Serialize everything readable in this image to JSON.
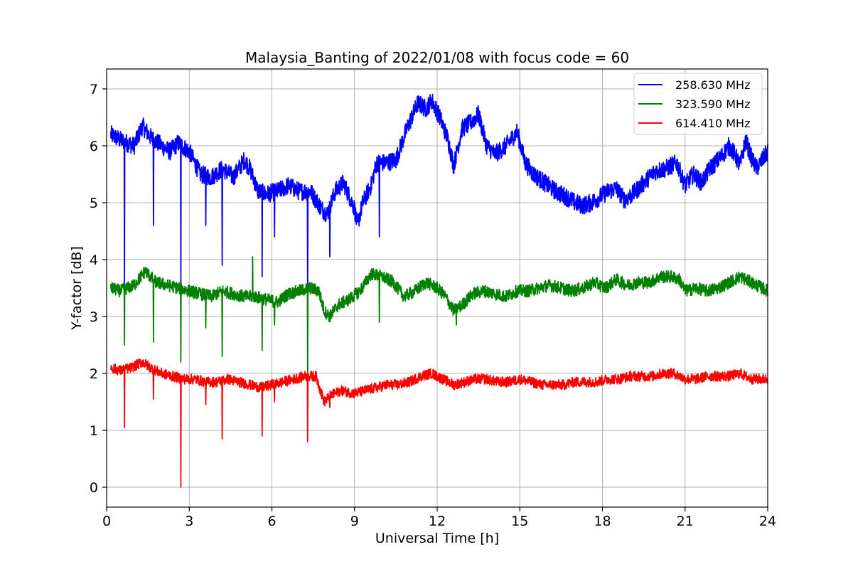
{
  "chart_data": {
    "type": "line",
    "title": "Malaysia_Banting of 2022/01/08 with focus code = 60",
    "xlabel": "Universal Time [h]",
    "ylabel": "Y-factor [dB]",
    "xlim": [
      0,
      24
    ],
    "ylim": [
      -0.35,
      7.35
    ],
    "xticks": [
      0,
      3,
      6,
      9,
      12,
      15,
      18,
      21,
      24
    ],
    "xtick_labels": [
      "0",
      "3",
      "6",
      "9",
      "12",
      "15",
      "18",
      "21",
      "24"
    ],
    "yticks": [
      0,
      1,
      2,
      3,
      4,
      5,
      6,
      7
    ],
    "ytick_labels": [
      "0",
      "1",
      "2",
      "3",
      "4",
      "5",
      "6",
      "7"
    ],
    "grid": true,
    "legend_position": "top-right",
    "series": [
      {
        "name": "258.630 MHz",
        "color": "#0000ff",
        "x": [
          0.15,
          0.5,
          1.0,
          1.3,
          1.6,
          2.0,
          2.3,
          2.6,
          3.0,
          3.4,
          3.8,
          4.2,
          4.6,
          5.0,
          5.2,
          5.5,
          5.8,
          6.2,
          6.6,
          7.0,
          7.4,
          7.8,
          8.0,
          8.3,
          8.6,
          9.0,
          9.1,
          9.3,
          9.6,
          9.8,
          10.1,
          10.5,
          10.9,
          11.3,
          11.6,
          11.8,
          12.1,
          12.4,
          12.6,
          12.9,
          13.2,
          13.5,
          13.8,
          14.1,
          14.5,
          14.9,
          15.2,
          15.5,
          15.9,
          16.3,
          16.7,
          17.0,
          17.3,
          17.6,
          17.9,
          18.2,
          18.5,
          18.8,
          19.1,
          19.5,
          19.9,
          20.3,
          20.7,
          21.0,
          21.3,
          21.6,
          21.9,
          22.3,
          22.6,
          22.8,
          23.0,
          23.2,
          23.4,
          23.6,
          23.8,
          24.0
        ],
        "y": [
          6.2,
          6.1,
          6.0,
          6.35,
          6.15,
          6.0,
          5.9,
          6.05,
          5.9,
          5.5,
          5.45,
          5.6,
          5.45,
          5.75,
          5.6,
          5.2,
          5.15,
          5.2,
          5.3,
          5.2,
          5.2,
          4.9,
          4.8,
          5.2,
          5.35,
          4.9,
          4.6,
          5.0,
          5.3,
          5.7,
          5.7,
          5.75,
          6.3,
          6.75,
          6.65,
          6.8,
          6.5,
          6.1,
          5.65,
          6.3,
          6.4,
          6.55,
          6.0,
          5.85,
          6.0,
          6.25,
          5.7,
          5.5,
          5.35,
          5.2,
          5.1,
          5.0,
          4.95,
          5.0,
          5.1,
          5.2,
          5.25,
          5.05,
          5.15,
          5.35,
          5.55,
          5.6,
          5.7,
          5.3,
          5.5,
          5.35,
          5.6,
          5.8,
          6.0,
          5.85,
          5.65,
          6.1,
          5.8,
          5.6,
          5.75,
          5.9
        ],
        "spikes": [
          [
            0.65,
            3.4
          ],
          [
            1.7,
            4.6
          ],
          [
            2.7,
            3.5
          ],
          [
            3.6,
            4.6
          ],
          [
            4.2,
            3.9
          ],
          [
            5.65,
            3.7
          ],
          [
            6.1,
            4.4
          ],
          [
            7.3,
            3.5
          ],
          [
            8.1,
            4.05
          ],
          [
            9.9,
            4.4
          ]
        ]
      },
      {
        "name": "323.590 MHz",
        "color": "#008000",
        "x": [
          0.15,
          0.5,
          1.0,
          1.4,
          1.8,
          2.2,
          2.6,
          3.0,
          3.4,
          3.8,
          4.2,
          4.6,
          5.0,
          5.4,
          5.8,
          6.2,
          6.6,
          7.0,
          7.4,
          7.7,
          7.9,
          8.1,
          8.4,
          8.8,
          9.2,
          9.6,
          10.0,
          10.4,
          10.8,
          11.2,
          11.6,
          12.0,
          12.3,
          12.6,
          12.9,
          13.3,
          13.7,
          14.1,
          14.5,
          14.9,
          15.3,
          15.7,
          16.1,
          16.5,
          16.9,
          17.3,
          17.7,
          18.1,
          18.5,
          18.9,
          19.3,
          19.7,
          20.1,
          20.5,
          20.8,
          21.0,
          21.4,
          21.8,
          22.2,
          22.6,
          23.0,
          23.4,
          23.8,
          24.0
        ],
        "y": [
          3.5,
          3.45,
          3.55,
          3.8,
          3.6,
          3.55,
          3.5,
          3.45,
          3.4,
          3.35,
          3.45,
          3.4,
          3.35,
          3.35,
          3.3,
          3.25,
          3.4,
          3.45,
          3.5,
          3.45,
          3.1,
          3.0,
          3.2,
          3.3,
          3.45,
          3.75,
          3.7,
          3.6,
          3.35,
          3.45,
          3.6,
          3.5,
          3.35,
          3.1,
          3.2,
          3.4,
          3.45,
          3.4,
          3.35,
          3.45,
          3.45,
          3.5,
          3.55,
          3.5,
          3.45,
          3.5,
          3.6,
          3.5,
          3.65,
          3.55,
          3.6,
          3.6,
          3.7,
          3.7,
          3.65,
          3.45,
          3.5,
          3.45,
          3.5,
          3.6,
          3.7,
          3.6,
          3.5,
          3.45
        ],
        "spikes": [
          [
            0.65,
            2.5
          ],
          [
            1.7,
            2.55
          ],
          [
            2.7,
            2.2
          ],
          [
            3.6,
            2.8
          ],
          [
            4.2,
            2.3
          ],
          [
            5.3,
            4.05
          ],
          [
            5.65,
            2.4
          ],
          [
            6.1,
            2.85
          ],
          [
            7.3,
            2.0
          ],
          [
            9.9,
            2.9
          ],
          [
            12.7,
            2.85
          ]
        ]
      },
      {
        "name": "614.410 MHz",
        "color": "#ff0000",
        "x": [
          0.15,
          0.5,
          0.9,
          1.3,
          1.6,
          2.0,
          2.4,
          2.8,
          3.2,
          3.6,
          4.0,
          4.4,
          4.8,
          5.2,
          5.6,
          6.0,
          6.4,
          6.8,
          7.2,
          7.6,
          7.9,
          8.1,
          8.5,
          9.0,
          9.4,
          9.8,
          10.2,
          10.6,
          11.0,
          11.4,
          11.8,
          12.2,
          12.6,
          13.0,
          13.4,
          13.8,
          14.2,
          14.6,
          15.0,
          15.4,
          15.8,
          16.2,
          16.6,
          17.0,
          17.4,
          17.8,
          18.2,
          18.6,
          19.0,
          19.4,
          19.8,
          20.2,
          20.6,
          21.0,
          21.4,
          21.8,
          22.2,
          22.6,
          23.0,
          23.4,
          23.8,
          24.0
        ],
        "y": [
          2.1,
          2.05,
          2.1,
          2.2,
          2.1,
          2.0,
          1.95,
          1.9,
          1.9,
          1.85,
          1.85,
          1.9,
          1.85,
          1.8,
          1.75,
          1.8,
          1.85,
          1.9,
          1.95,
          1.95,
          1.5,
          1.6,
          1.7,
          1.65,
          1.7,
          1.75,
          1.8,
          1.8,
          1.85,
          1.95,
          2.0,
          1.9,
          1.8,
          1.85,
          1.9,
          1.9,
          1.85,
          1.85,
          1.9,
          1.85,
          1.8,
          1.8,
          1.8,
          1.85,
          1.85,
          1.85,
          1.9,
          1.9,
          1.95,
          1.95,
          1.95,
          2.0,
          2.0,
          1.9,
          1.9,
          1.95,
          1.95,
          1.95,
          2.0,
          1.9,
          1.9,
          1.9
        ],
        "spikes": [
          [
            0.65,
            1.05
          ],
          [
            1.7,
            1.55
          ],
          [
            2.7,
            0.0
          ],
          [
            3.6,
            1.45
          ],
          [
            4.2,
            0.85
          ],
          [
            5.65,
            0.9
          ],
          [
            6.1,
            1.5
          ],
          [
            7.3,
            0.8
          ],
          [
            8.1,
            1.4
          ]
        ]
      }
    ]
  }
}
